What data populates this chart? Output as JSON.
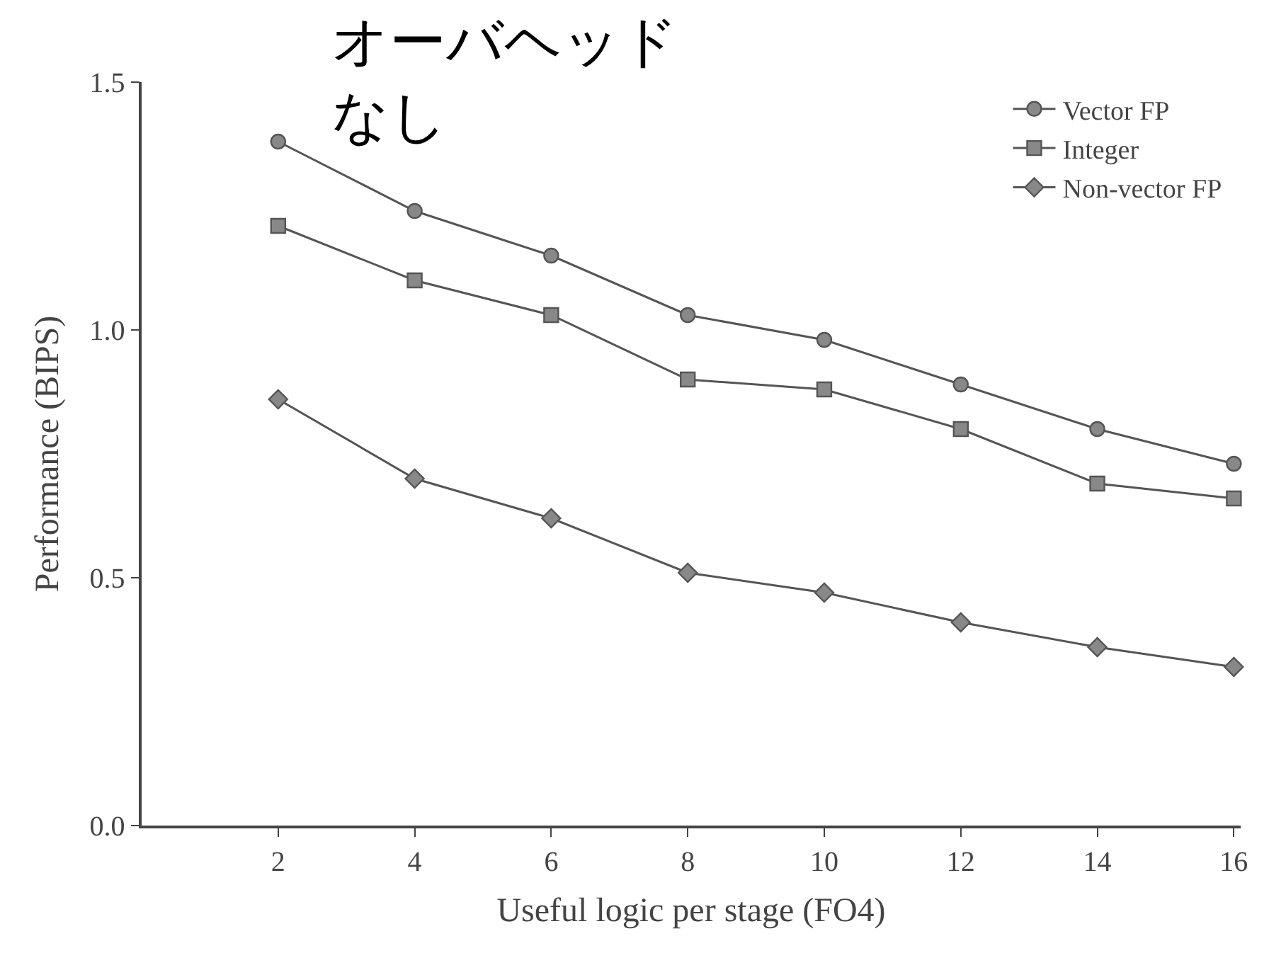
{
  "chart_data": {
    "type": "line",
    "annotations": [
      "オーバヘッド",
      "なし"
    ],
    "xlabel": "Useful logic per stage (FO4)",
    "ylabel": "Performance (BIPS)",
    "x": [
      2,
      4,
      6,
      8,
      10,
      12,
      14,
      16
    ],
    "series": [
      {
        "name": "Vector FP",
        "color": "#555555",
        "marker": "circle",
        "values": [
          1.38,
          1.24,
          1.15,
          1.03,
          0.98,
          0.89,
          0.8,
          0.73
        ]
      },
      {
        "name": "Integer",
        "color": "#555555",
        "marker": "square",
        "values": [
          1.21,
          1.1,
          1.03,
          0.9,
          0.88,
          0.8,
          0.69,
          0.66
        ]
      },
      {
        "name": "Non-vector FP",
        "color": "#555555",
        "marker": "diamond",
        "values": [
          0.86,
          0.7,
          0.62,
          0.51,
          0.47,
          0.41,
          0.36,
          0.32
        ]
      }
    ],
    "xlim": [
      0,
      16.1
    ],
    "xticks": [
      2,
      4,
      6,
      8,
      10,
      12,
      14,
      16
    ],
    "ylim": [
      0,
      1.5
    ],
    "yticks": [
      {
        "value": 0,
        "label": "0.0"
      },
      0.5,
      {
        "value": 1,
        "label": "1.0"
      },
      1.5
    ],
    "legend": "top right",
    "line_style": "solid"
  }
}
